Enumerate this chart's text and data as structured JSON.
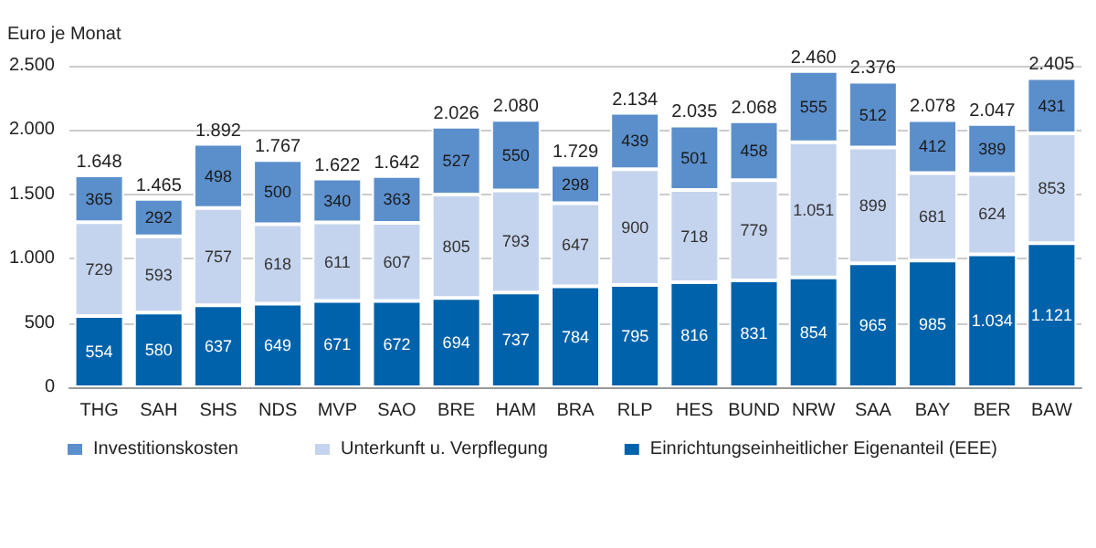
{
  "chart_data": {
    "type": "bar",
    "stacked": true,
    "ylabel": "Euro je Monat",
    "categories": [
      "THG",
      "SAH",
      "SHS",
      "NDS",
      "MVP",
      "SAO",
      "BRE",
      "HAM",
      "BRA",
      "RLP",
      "HES",
      "BUND",
      "NRW",
      "SAA",
      "BAY",
      "BER",
      "BAW"
    ],
    "series": [
      {
        "name": "Einrichtungseinheitlicher Eigenanteil (EEE)",
        "color": "#0062ab",
        "values": [
          554,
          580,
          637,
          649,
          671,
          672,
          694,
          737,
          784,
          795,
          816,
          831,
          854,
          965,
          985,
          1034,
          1121
        ],
        "value_labels": [
          "554",
          "580",
          "637",
          "649",
          "671",
          "672",
          "694",
          "737",
          "784",
          "795",
          "816",
          "831",
          "854",
          "965",
          "985",
          "1.034",
          "1.121"
        ]
      },
      {
        "name": "Unterkunft u. Verpflegung",
        "color": "#c5d4ee",
        "values": [
          729,
          593,
          757,
          618,
          611,
          607,
          805,
          793,
          647,
          900,
          718,
          779,
          1051,
          899,
          681,
          624,
          853
        ],
        "value_labels": [
          "729",
          "593",
          "757",
          "618",
          "611",
          "607",
          "805",
          "793",
          "647",
          "900",
          "718",
          "779",
          "1.051",
          "899",
          "681",
          "624",
          "853"
        ]
      },
      {
        "name": "Investitionskosten",
        "color": "#5b8fcc",
        "values": [
          365,
          292,
          498,
          500,
          340,
          363,
          527,
          550,
          298,
          439,
          501,
          458,
          555,
          512,
          412,
          389,
          431
        ],
        "value_labels": [
          "365",
          "292",
          "498",
          "500",
          "340",
          "363",
          "527",
          "550",
          "298",
          "439",
          "501",
          "458",
          "555",
          "512",
          "412",
          "389",
          "431"
        ]
      }
    ],
    "totals": [
      "1.648",
      "1.465",
      "1.892",
      "1.767",
      "1.622",
      "1.642",
      "2.026",
      "2.080",
      "1.729",
      "2.134",
      "2.035",
      "2.068",
      "2.460",
      "2.376",
      "2.078",
      "2.047",
      "2.405"
    ],
    "ylim": [
      0,
      2500
    ],
    "yticks": [
      {
        "value": 0,
        "label": "0"
      },
      {
        "value": 500,
        "label": "500"
      },
      {
        "value": 1000,
        "label": "1.000"
      },
      {
        "value": 1500,
        "label": "1.500"
      },
      {
        "value": 2000,
        "label": "2.000"
      },
      {
        "value": 2500,
        "label": "2.500"
      }
    ],
    "grid": "y",
    "legend": "bottom"
  }
}
